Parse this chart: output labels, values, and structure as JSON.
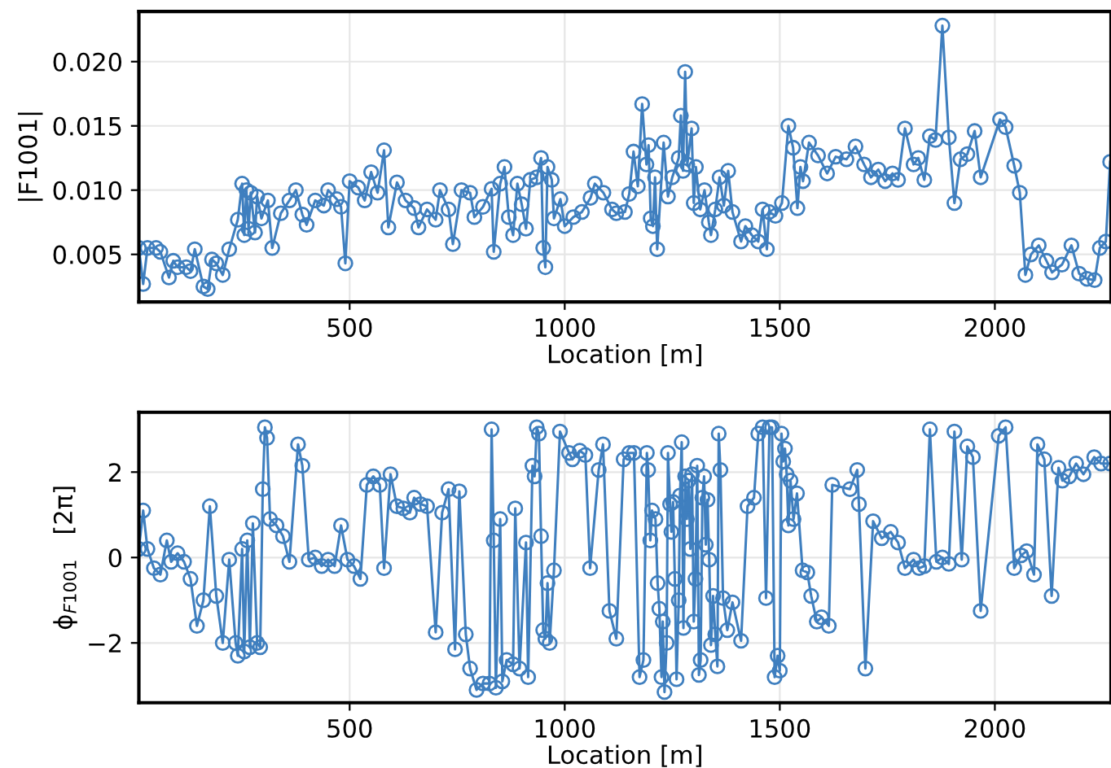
{
  "chart_data": [
    {
      "type": "line",
      "ylabel": "|F1001|",
      "xlabel": "Location [m]",
      "marker": "circle",
      "grid": true,
      "xlim": [
        10,
        2270
      ],
      "xticks": [
        500,
        1000,
        1500,
        2000
      ],
      "ylim": [
        0.0013,
        0.0239
      ],
      "yticks": [
        {
          "value": 0.005,
          "label": "0.005"
        },
        {
          "value": 0.01,
          "label": "0.010"
        },
        {
          "value": 0.015,
          "label": "0.015"
        },
        {
          "value": 0.02,
          "label": "0.020"
        }
      ],
      "series": [
        {
          "color": "#3f7fbf",
          "x": [
            10,
            20,
            30,
            50,
            60,
            80,
            90,
            100,
            120,
            130,
            140,
            160,
            170,
            180,
            190,
            205,
            220,
            240,
            250,
            255,
            260,
            265,
            270,
            280,
            285,
            295,
            310,
            320,
            340,
            360,
            375,
            390,
            400,
            420,
            440,
            450,
            470,
            480,
            490,
            500,
            520,
            535,
            550,
            565,
            580,
            590,
            610,
            630,
            650,
            660,
            680,
            700,
            710,
            730,
            740,
            760,
            780,
            790,
            810,
            830,
            835,
            850,
            860,
            870,
            880,
            890,
            900,
            910,
            920,
            935,
            945,
            950,
            955,
            960,
            970,
            975,
            990,
            1000,
            1020,
            1040,
            1060,
            1070,
            1090,
            1110,
            1120,
            1140,
            1150,
            1160,
            1170,
            1180,
            1190,
            1195,
            1200,
            1205,
            1210,
            1215,
            1230,
            1240,
            1250,
            1265,
            1270,
            1275,
            1280,
            1285,
            1295,
            1300,
            1305,
            1315,
            1325,
            1335,
            1340,
            1350,
            1360,
            1370,
            1380,
            1390,
            1410,
            1420,
            1435,
            1450,
            1460,
            1470,
            1475,
            1490,
            1505,
            1520,
            1531,
            1541,
            1548,
            1554,
            1568,
            1589,
            1610,
            1630,
            1655,
            1676,
            1696,
            1712,
            1729,
            1745,
            1762,
            1775,
            1791,
            1811,
            1822,
            1836,
            1849,
            1862,
            1878,
            1893,
            1906,
            1920,
            1936,
            1953,
            1967,
            2012,
            2025,
            2045,
            2058,
            2071,
            2084,
            2102,
            2120,
            2133,
            2156,
            2178,
            2196,
            2214,
            2232,
            2244,
            2258,
            2268
          ],
          "values": [
            0.0055,
            0.0027,
            0.0055,
            0.0055,
            0.0052,
            0.0032,
            0.0045,
            0.004,
            0.004,
            0.0037,
            0.0054,
            0.0025,
            0.0023,
            0.0046,
            0.0043,
            0.0034,
            0.0054,
            0.0077,
            0.0105,
            0.0065,
            0.01,
            0.007,
            0.0098,
            0.0067,
            0.0095,
            0.0078,
            0.0092,
            0.0055,
            0.0082,
            0.0092,
            0.01,
            0.0081,
            0.0073,
            0.0092,
            0.0088,
            0.01,
            0.0093,
            0.0087,
            0.0043,
            0.0107,
            0.0102,
            0.0092,
            0.0114,
            0.0098,
            0.0131,
            0.0071,
            0.0106,
            0.0092,
            0.0086,
            0.0071,
            0.0085,
            0.0077,
            0.01,
            0.0085,
            0.0058,
            0.01,
            0.0098,
            0.0079,
            0.0087,
            0.0101,
            0.0052,
            0.0105,
            0.0118,
            0.0079,
            0.0065,
            0.0105,
            0.0089,
            0.007,
            0.0108,
            0.011,
            0.0125,
            0.0055,
            0.004,
            0.0118,
            0.0108,
            0.0078,
            0.0093,
            0.0072,
            0.0079,
            0.0083,
            0.0094,
            0.0105,
            0.0098,
            0.0085,
            0.0082,
            0.0083,
            0.0097,
            0.013,
            0.0103,
            0.0167,
            0.012,
            0.0135,
            0.0078,
            0.0072,
            0.011,
            0.0054,
            0.0137,
            0.0095,
            0.011,
            0.0125,
            0.0158,
            0.0115,
            0.0192,
            0.012,
            0.0148,
            0.009,
            0.0118,
            0.0085,
            0.01,
            0.0075,
            0.0065,
            0.0085,
            0.011,
            0.0088,
            0.0115,
            0.0083,
            0.006,
            0.0072,
            0.0065,
            0.006,
            0.0085,
            0.0054,
            0.0083,
            0.008,
            0.009,
            0.015,
            0.0133,
            0.0086,
            0.0118,
            0.0107,
            0.0137,
            0.0127,
            0.0113,
            0.0126,
            0.0124,
            0.0134,
            0.012,
            0.011,
            0.0116,
            0.0107,
            0.0113,
            0.0108,
            0.0148,
            0.012,
            0.0125,
            0.0108,
            0.0142,
            0.0139,
            0.0228,
            0.0141,
            0.009,
            0.0124,
            0.0128,
            0.0146,
            0.011,
            0.0155,
            0.0149,
            0.0119,
            0.0098,
            0.0034,
            0.005,
            0.0057,
            0.0045,
            0.0036,
            0.0042,
            0.0057,
            0.0035,
            0.0031,
            0.003,
            0.0055,
            0.006,
            0.0122
          ]
        }
      ]
    },
    {
      "type": "line",
      "ylabel": "ϕ$_{F1001}$   [2π]",
      "xlabel": "Location [m]",
      "marker": "circle",
      "grid": true,
      "xlim": [
        10,
        2270
      ],
      "xticks": [
        500,
        1000,
        1500,
        2000
      ],
      "ylim": [
        -3.4,
        3.4
      ],
      "yticks": [
        {
          "value": -2,
          "label": "−2"
        },
        0,
        2
      ],
      "series": [
        {
          "color": "#3f7fbf",
          "x": [
            10,
            20,
            30,
            45,
            60,
            75,
            85,
            100,
            115,
            130,
            145,
            160,
            175,
            190,
            205,
            220,
            235,
            240,
            250,
            255,
            262,
            268,
            275,
            285,
            292,
            298,
            303,
            308,
            315,
            330,
            345,
            360,
            380,
            390,
            405,
            420,
            435,
            450,
            465,
            480,
            495,
            510,
            525,
            540,
            555,
            570,
            580,
            595,
            610,
            625,
            640,
            650,
            665,
            680,
            700,
            715,
            730,
            745,
            755,
            770,
            780,
            795,
            810,
            825,
            830,
            835,
            840,
            850,
            855,
            865,
            880,
            885,
            895,
            910,
            915,
            925,
            930,
            935,
            940,
            945,
            950,
            955,
            960,
            965,
            975,
            989,
            1010,
            1018,
            1035,
            1048,
            1059,
            1079,
            1089,
            1104,
            1120,
            1137,
            1150,
            1161,
            1174,
            1183,
            1191,
            1194,
            1199,
            1203,
            1211,
            1216,
            1220,
            1225,
            1228,
            1232,
            1237,
            1240,
            1245,
            1248,
            1252,
            1256,
            1260,
            1265,
            1268,
            1272,
            1276,
            1280,
            1284,
            1288,
            1292,
            1296,
            1300,
            1304,
            1308,
            1312,
            1316,
            1320,
            1324,
            1328,
            1332,
            1336,
            1340,
            1345,
            1350,
            1355,
            1358,
            1362,
            1368,
            1378,
            1390,
            1410,
            1425,
            1440,
            1450,
            1460,
            1468,
            1476,
            1482,
            1488,
            1495,
            1500,
            1504,
            1508,
            1512,
            1516,
            1520,
            1525,
            1532,
            1540,
            1553,
            1564,
            1573,
            1586,
            1597,
            1614,
            1622,
            1663,
            1680,
            1684,
            1699,
            1717,
            1737,
            1758,
            1775,
            1791,
            1811,
            1824,
            1836,
            1849,
            1864,
            1878,
            1893,
            1906,
            1923,
            1936,
            1949,
            1967,
            2009,
            2025,
            2045,
            2061,
            2074,
            2091,
            2099,
            2115,
            2132,
            2148,
            2157,
            2173,
            2189,
            2206,
            2231,
            2247,
            2268
          ],
          "values": [
            0.2,
            1.1,
            0.2,
            -0.25,
            -0.4,
            0.4,
            -0.1,
            0.1,
            -0.1,
            -0.5,
            -1.6,
            -1.0,
            1.2,
            -0.9,
            -2.0,
            -0.05,
            -2.0,
            -2.3,
            0.2,
            -2.2,
            0.4,
            -2.1,
            0.8,
            -2.0,
            -2.1,
            1.6,
            3.05,
            2.8,
            0.9,
            0.75,
            0.5,
            -0.1,
            2.65,
            2.15,
            -0.05,
            0.0,
            -0.2,
            -0.05,
            -0.2,
            0.75,
            -0.05,
            -0.2,
            -0.5,
            1.7,
            1.9,
            1.7,
            -0.25,
            1.95,
            1.2,
            1.15,
            1.05,
            1.4,
            1.25,
            1.2,
            -1.75,
            1.05,
            1.6,
            -2.15,
            1.55,
            -1.8,
            -2.6,
            -3.1,
            -2.95,
            -2.95,
            3.0,
            0.4,
            -3.05,
            0.9,
            -2.9,
            -2.4,
            -2.5,
            1.15,
            -2.6,
            0.35,
            -2.8,
            2.15,
            1.9,
            3.05,
            2.9,
            0.5,
            -1.7,
            -1.9,
            -0.6,
            -2.0,
            -0.3,
            2.95,
            2.45,
            2.3,
            2.5,
            2.4,
            -0.25,
            2.05,
            2.65,
            -1.25,
            -1.9,
            2.3,
            2.45,
            2.45,
            -2.8,
            -2.4,
            2.45,
            2.05,
            0.4,
            1.1,
            0.9,
            -0.6,
            -1.2,
            -2.8,
            -1.5,
            -3.15,
            -2.0,
            2.45,
            1.25,
            0.6,
            1.3,
            -0.5,
            -2.85,
            -1.0,
            1.45,
            2.7,
            -1.65,
            1.9,
            0.9,
            1.8,
            0.2,
            1.95,
            -1.5,
            -0.5,
            2.15,
            -2.75,
            -2.4,
            1.4,
            1.9,
            0.3,
            1.35,
            -0.05,
            -2.05,
            -0.9,
            -1.8,
            -2.55,
            2.9,
            2.05,
            -0.95,
            -1.7,
            -1.05,
            -1.95,
            1.2,
            1.4,
            2.9,
            3.05,
            -0.95,
            3.05,
            3.05,
            -2.8,
            -2.3,
            -2.65,
            2.9,
            2.25,
            2.55,
            1.95,
            0.75,
            1.8,
            0.9,
            1.5,
            -0.3,
            -0.35,
            -0.9,
            -1.5,
            -1.4,
            -1.6,
            1.7,
            1.6,
            2.05,
            1.25,
            -2.6,
            0.85,
            0.45,
            0.6,
            0.35,
            -0.25,
            -0.05,
            -0.25,
            -0.2,
            3.0,
            -0.1,
            0.0,
            -0.15,
            2.95,
            -0.05,
            2.6,
            2.35,
            -1.25,
            2.85,
            3.05,
            -0.25,
            0.05,
            0.15,
            -0.4,
            2.65,
            2.3,
            -0.9,
            2.1,
            1.8,
            1.9,
            2.2,
            1.95,
            2.35,
            2.2,
            2.2
          ]
        }
      ]
    }
  ]
}
